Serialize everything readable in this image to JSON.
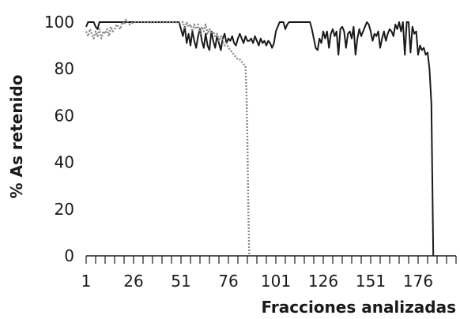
{
  "chart_data": {
    "type": "line",
    "xlabel": "Fracciones analizadas",
    "ylabel": "% As retenido",
    "xlim": [
      1,
      196
    ],
    "ylim": [
      0,
      100
    ],
    "x_ticks": [
      1,
      26,
      51,
      76,
      101,
      126,
      151,
      176
    ],
    "y_ticks": [
      0,
      20,
      40,
      60,
      80,
      100
    ],
    "grid": false,
    "legend": "none",
    "series": [
      {
        "style": "solid",
        "color": "#1a1a1a",
        "points": [
          [
            1,
            98
          ],
          [
            2,
            100
          ],
          [
            3,
            100
          ],
          [
            5,
            100
          ],
          [
            6,
            98
          ],
          [
            7,
            97
          ],
          [
            8,
            100
          ],
          [
            12,
            100
          ],
          [
            20,
            100
          ],
          [
            30,
            100
          ],
          [
            40,
            100
          ],
          [
            50,
            100
          ],
          [
            51,
            97
          ],
          [
            52,
            94
          ],
          [
            53,
            98
          ],
          [
            54,
            91
          ],
          [
            55,
            95
          ],
          [
            56,
            90
          ],
          [
            57,
            96
          ],
          [
            58,
            92
          ],
          [
            59,
            89
          ],
          [
            60,
            94
          ],
          [
            61,
            97
          ],
          [
            62,
            92
          ],
          [
            63,
            89
          ],
          [
            64,
            95
          ],
          [
            65,
            90
          ],
          [
            66,
            88
          ],
          [
            67,
            96
          ],
          [
            68,
            92
          ],
          [
            69,
            89
          ],
          [
            70,
            94
          ],
          [
            71,
            91
          ],
          [
            72,
            88
          ],
          [
            73,
            93
          ],
          [
            74,
            95
          ],
          [
            75,
            91
          ],
          [
            76,
            93
          ],
          [
            77,
            92
          ],
          [
            78,
            94
          ],
          [
            79,
            91
          ],
          [
            80,
            90
          ],
          [
            81,
            93
          ],
          [
            82,
            95
          ],
          [
            83,
            93
          ],
          [
            84,
            91
          ],
          [
            85,
            94
          ],
          [
            86,
            92
          ],
          [
            87,
            92
          ],
          [
            88,
            93
          ],
          [
            89,
            91
          ],
          [
            90,
            94
          ],
          [
            91,
            92
          ],
          [
            92,
            90
          ],
          [
            93,
            93
          ],
          [
            94,
            91
          ],
          [
            95,
            92
          ],
          [
            96,
            90
          ],
          [
            97,
            92
          ],
          [
            98,
            91
          ],
          [
            99,
            89
          ],
          [
            100,
            91
          ],
          [
            101,
            96
          ],
          [
            102,
            98
          ],
          [
            103,
            100
          ],
          [
            104,
            100
          ],
          [
            105,
            100
          ],
          [
            106,
            97
          ],
          [
            107,
            99
          ],
          [
            108,
            100
          ],
          [
            110,
            100
          ],
          [
            115,
            100
          ],
          [
            119,
            100
          ],
          [
            120,
            97
          ],
          [
            121,
            93
          ],
          [
            122,
            89
          ],
          [
            123,
            88
          ],
          [
            124,
            93
          ],
          [
            125,
            91
          ],
          [
            126,
            96
          ],
          [
            127,
            93
          ],
          [
            128,
            96
          ],
          [
            129,
            89
          ],
          [
            130,
            95
          ],
          [
            131,
            97
          ],
          [
            132,
            94
          ],
          [
            133,
            96
          ],
          [
            134,
            86
          ],
          [
            135,
            97
          ],
          [
            136,
            98
          ],
          [
            137,
            96
          ],
          [
            138,
            89
          ],
          [
            139,
            95
          ],
          [
            140,
            96
          ],
          [
            141,
            93
          ],
          [
            142,
            98
          ],
          [
            143,
            86
          ],
          [
            144,
            93
          ],
          [
            145,
            97
          ],
          [
            146,
            94
          ],
          [
            147,
            96
          ],
          [
            148,
            98
          ],
          [
            149,
            100
          ],
          [
            150,
            99
          ],
          [
            151,
            96
          ],
          [
            152,
            92
          ],
          [
            153,
            95
          ],
          [
            154,
            94
          ],
          [
            155,
            96
          ],
          [
            156,
            89
          ],
          [
            157,
            93
          ],
          [
            158,
            96
          ],
          [
            159,
            92
          ],
          [
            160,
            95
          ],
          [
            161,
            97
          ],
          [
            162,
            96
          ],
          [
            163,
            94
          ],
          [
            164,
            99
          ],
          [
            165,
            97
          ],
          [
            166,
            100
          ],
          [
            167,
            96
          ],
          [
            168,
            100
          ],
          [
            169,
            86
          ],
          [
            170,
            100
          ],
          [
            171,
            100
          ],
          [
            172,
            87
          ],
          [
            173,
            98
          ],
          [
            174,
            95
          ],
          [
            175,
            96
          ],
          [
            176,
            86
          ],
          [
            177,
            90
          ],
          [
            178,
            88
          ],
          [
            179,
            89
          ],
          [
            180,
            86
          ],
          [
            181,
            87
          ],
          [
            182,
            80
          ],
          [
            183,
            65
          ],
          [
            184,
            0
          ]
        ]
      },
      {
        "style": "dotted",
        "color": "#8a8a8a",
        "points": [
          [
            1,
            96
          ],
          [
            2,
            94
          ],
          [
            3,
            97
          ],
          [
            4,
            95
          ],
          [
            5,
            93
          ],
          [
            6,
            96
          ],
          [
            7,
            94
          ],
          [
            8,
            97
          ],
          [
            9,
            93
          ],
          [
            10,
            96
          ],
          [
            11,
            95
          ],
          [
            12,
            97
          ],
          [
            13,
            94
          ],
          [
            14,
            98
          ],
          [
            15,
            96
          ],
          [
            16,
            97
          ],
          [
            17,
            99
          ],
          [
            18,
            98
          ],
          [
            19,
            97
          ],
          [
            20,
            100
          ],
          [
            21,
            99
          ],
          [
            22,
            101
          ],
          [
            23,
            100
          ],
          [
            24,
            99
          ],
          [
            26,
            100
          ],
          [
            30,
            100
          ],
          [
            40,
            100
          ],
          [
            50,
            100
          ],
          [
            52,
            100
          ],
          [
            53,
            97
          ],
          [
            54,
            100
          ],
          [
            55,
            98
          ],
          [
            56,
            99
          ],
          [
            57,
            96
          ],
          [
            58,
            99
          ],
          [
            59,
            97
          ],
          [
            60,
            99
          ],
          [
            61,
            95
          ],
          [
            62,
            98
          ],
          [
            63,
            96
          ],
          [
            64,
            99
          ],
          [
            65,
            95
          ],
          [
            66,
            97
          ],
          [
            67,
            95
          ],
          [
            68,
            96
          ],
          [
            69,
            94
          ],
          [
            70,
            95
          ],
          [
            71,
            92
          ],
          [
            72,
            94
          ],
          [
            73,
            92
          ],
          [
            74,
            90
          ],
          [
            75,
            91
          ],
          [
            76,
            89
          ],
          [
            77,
            88
          ],
          [
            78,
            87
          ],
          [
            79,
            86
          ],
          [
            80,
            85
          ],
          [
            81,
            84
          ],
          [
            82,
            84
          ],
          [
            83,
            83
          ],
          [
            84,
            82
          ],
          [
            85,
            81
          ],
          [
            85.5,
            70
          ],
          [
            86,
            50
          ],
          [
            86.5,
            20
          ],
          [
            87,
            0
          ]
        ]
      }
    ]
  }
}
